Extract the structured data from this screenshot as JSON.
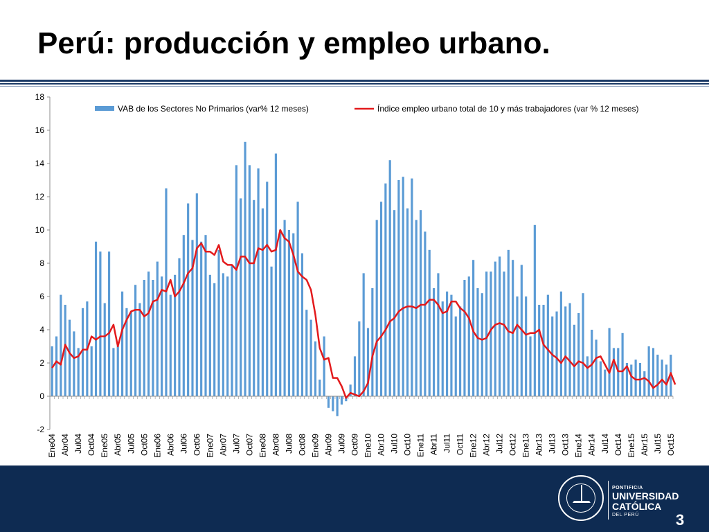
{
  "slide": {
    "title": "Perú: producción y empleo urbano.",
    "page_number": "3",
    "footer_logo": {
      "line1": "PONTIFICIA",
      "line2": "UNIVERSIDAD",
      "line3": "CATÓLICA",
      "line4": "DEL PERÚ",
      "seal_icon": "university-seal-icon"
    },
    "colors": {
      "bars": "#5b9bd5",
      "line": "#e31a1c",
      "footer": "#0e2b52"
    }
  },
  "chart_data": {
    "type": "bar",
    "title": "",
    "xlabel": "",
    "ylabel": "",
    "ylim": [
      -2,
      18
    ],
    "yticks": [
      -2,
      0,
      2,
      4,
      6,
      8,
      10,
      12,
      14,
      16,
      18
    ],
    "legend_placement": "top",
    "grid": false,
    "x_tick_labels": [
      "Ene04",
      "Abr04",
      "Jul04",
      "Oct04",
      "Ene05",
      "Abr05",
      "Jul05",
      "Oct05",
      "Ene06",
      "Abr06",
      "Jul06",
      "Oct06",
      "Ene07",
      "Abr07",
      "Jul07",
      "Oct07",
      "Ene08",
      "Abr08",
      "Jul08",
      "Oct08",
      "Ene09",
      "Abr09",
      "Jul09",
      "Oct09",
      "Ene10",
      "Abr10",
      "Jul10",
      "Oct10",
      "Ene11",
      "Abr11",
      "Jul11",
      "Oct11",
      "Ene12",
      "Abr12",
      "Jul12",
      "Oct12",
      "Ene13",
      "Abr13",
      "Jul13",
      "Oct13",
      "Ene14",
      "Abr14",
      "Jul14",
      "Oct14",
      "Ene15",
      "Abr15",
      "Jul15",
      "Oct15"
    ],
    "series": [
      {
        "name": "VAB de los Sectores No Primarios (var% 12 meses)",
        "type": "bar",
        "values": [
          3.0,
          3.6,
          6.1,
          5.5,
          4.6,
          3.9,
          2.9,
          5.3,
          5.7,
          3.0,
          9.3,
          8.7,
          5.6,
          8.7,
          2.9,
          3.0,
          6.3,
          5.3,
          5.1,
          6.7,
          5.6,
          7.0,
          7.5,
          7.0,
          8.1,
          7.2,
          12.5,
          6.1,
          7.3,
          8.3,
          9.7,
          11.6,
          9.4,
          12.2,
          9.3,
          9.7,
          7.3,
          6.8,
          8.8,
          7.4,
          7.2,
          7.9,
          13.9,
          11.9,
          15.3,
          13.9,
          11.8,
          13.7,
          11.3,
          12.9,
          7.8,
          14.6,
          10.0,
          10.6,
          10.0,
          9.8,
          11.7,
          8.6,
          5.2,
          4.6,
          3.3,
          1.0,
          3.6,
          -0.7,
          -0.9,
          -1.2,
          -0.5,
          -0.3,
          0.7,
          2.4,
          4.5,
          7.4,
          4.1,
          6.5,
          10.6,
          11.7,
          12.8,
          14.2,
          11.2,
          13.0,
          13.2,
          11.3,
          13.1,
          10.6,
          11.2,
          9.9,
          8.8,
          6.5,
          7.4,
          5.7,
          6.3,
          6.1,
          4.8,
          5.4,
          7.0,
          7.2,
          8.2,
          6.5,
          6.2,
          7.5,
          7.5,
          8.1,
          8.4,
          7.5,
          8.8,
          8.2,
          6.0,
          7.9,
          6.0,
          3.6,
          10.3,
          5.5,
          5.5,
          6.1,
          4.8,
          5.1,
          6.3,
          5.4,
          5.6,
          4.3,
          5.0,
          6.2,
          2.4,
          4.0,
          3.4,
          2.1,
          1.6,
          4.1,
          2.9,
          2.9,
          3.8,
          2.0,
          1.9,
          2.2,
          2.0,
          1.5,
          3.0,
          2.9,
          2.5,
          2.2,
          1.9,
          2.5
        ]
      },
      {
        "name": "Índice empleo urbano total de 10 y más trabajadores (var % 12 meses)",
        "type": "line",
        "values": [
          1.7,
          2.1,
          1.9,
          3.1,
          2.6,
          2.3,
          2.4,
          2.8,
          2.8,
          3.6,
          3.4,
          3.6,
          3.6,
          3.8,
          4.3,
          3.0,
          4.0,
          4.6,
          5.1,
          5.2,
          5.2,
          4.8,
          5.0,
          5.7,
          5.8,
          6.4,
          6.3,
          7.0,
          6.0,
          6.3,
          6.8,
          7.4,
          7.7,
          8.9,
          9.2,
          8.7,
          8.7,
          8.5,
          9.1,
          8.1,
          7.9,
          7.9,
          7.6,
          8.4,
          8.4,
          8.0,
          8.0,
          8.9,
          8.8,
          9.1,
          8.7,
          8.8,
          10.0,
          9.5,
          9.3,
          8.5,
          7.5,
          7.2,
          7.0,
          6.4,
          4.9,
          2.9,
          2.2,
          2.3,
          1.1,
          1.1,
          0.6,
          -0.1,
          0.2,
          0.1,
          0.0,
          0.3,
          0.8,
          2.4,
          3.3,
          3.6,
          4.0,
          4.5,
          4.7,
          5.1,
          5.3,
          5.4,
          5.4,
          5.3,
          5.5,
          5.5,
          5.8,
          5.8,
          5.5,
          5.0,
          5.1,
          5.7,
          5.7,
          5.3,
          5.1,
          4.7,
          3.9,
          3.5,
          3.4,
          3.5,
          4.0,
          4.3,
          4.4,
          4.3,
          3.9,
          3.8,
          4.3,
          4.0,
          3.7,
          3.8,
          3.8,
          4.0,
          3.1,
          2.8,
          2.5,
          2.3,
          2.0,
          2.4,
          2.1,
          1.8,
          2.1,
          2.0,
          1.7,
          1.9,
          2.3,
          2.4,
          1.9,
          1.4,
          2.2,
          1.5,
          1.5,
          1.8,
          1.2,
          1.0,
          1.0,
          1.1,
          0.9,
          0.5,
          0.7,
          1.0,
          0.7,
          1.4,
          0.7
        ]
      }
    ]
  }
}
